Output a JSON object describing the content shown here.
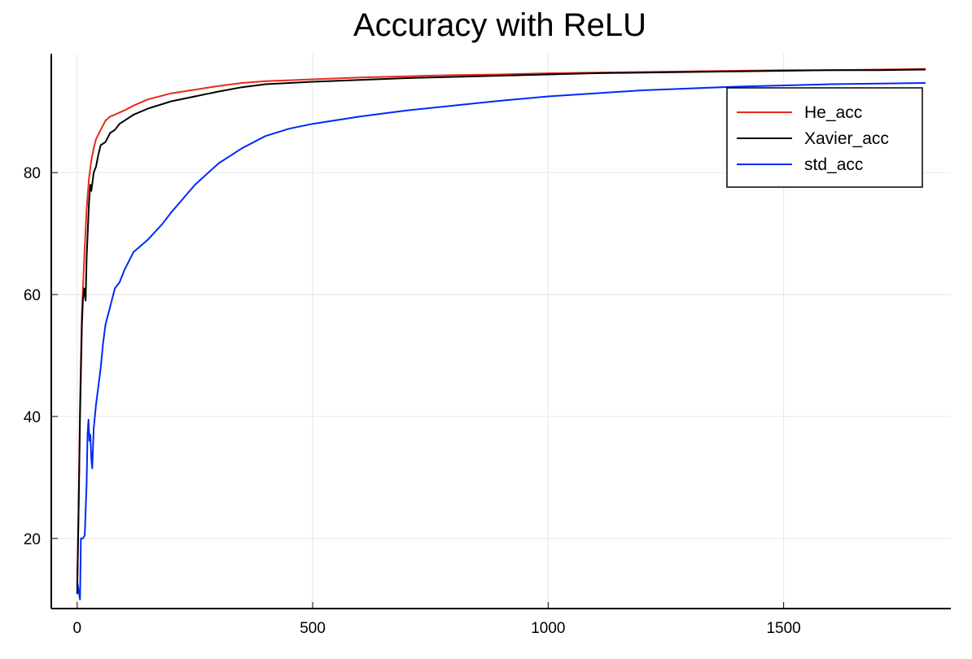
{
  "chart_data": {
    "type": "line",
    "title": "Accuracy with ReLU",
    "xlabel": "",
    "ylabel": "",
    "xlim": [
      -55,
      1855
    ],
    "ylim": [
      8.5,
      99.5
    ],
    "xticks": [
      0,
      500,
      1000,
      1500
    ],
    "yticks": [
      20,
      40,
      60,
      80
    ],
    "grid": true,
    "legend_position": "top-right",
    "series": [
      {
        "name": "He_acc",
        "color": "#e8291c",
        "points": [
          [
            0,
            12
          ],
          [
            3,
            25
          ],
          [
            6,
            42
          ],
          [
            10,
            57
          ],
          [
            15,
            66
          ],
          [
            20,
            74
          ],
          [
            25,
            79
          ],
          [
            30,
            82
          ],
          [
            35,
            84
          ],
          [
            40,
            85.5
          ],
          [
            50,
            87
          ],
          [
            60,
            88.5
          ],
          [
            70,
            89.2
          ],
          [
            80,
            89.5
          ],
          [
            100,
            90.2
          ],
          [
            120,
            91
          ],
          [
            150,
            92
          ],
          [
            200,
            93
          ],
          [
            250,
            93.6
          ],
          [
            300,
            94.2
          ],
          [
            350,
            94.7
          ],
          [
            400,
            95
          ],
          [
            500,
            95.3
          ],
          [
            600,
            95.6
          ],
          [
            700,
            95.8
          ],
          [
            800,
            96
          ],
          [
            900,
            96.1
          ],
          [
            1000,
            96.3
          ],
          [
            1100,
            96.4
          ],
          [
            1200,
            96.5
          ],
          [
            1300,
            96.6
          ],
          [
            1400,
            96.7
          ],
          [
            1500,
            96.8
          ],
          [
            1600,
            96.8
          ],
          [
            1700,
            96.9
          ],
          [
            1800,
            97
          ]
        ]
      },
      {
        "name": "Xavier_acc",
        "color": "#000000",
        "points": [
          [
            0,
            11
          ],
          [
            3,
            25
          ],
          [
            6,
            40
          ],
          [
            10,
            55
          ],
          [
            12,
            59
          ],
          [
            15,
            61
          ],
          [
            18,
            59
          ],
          [
            20,
            66
          ],
          [
            25,
            75
          ],
          [
            28,
            78
          ],
          [
            30,
            77
          ],
          [
            35,
            80
          ],
          [
            40,
            81
          ],
          [
            45,
            83
          ],
          [
            50,
            84.5
          ],
          [
            60,
            85
          ],
          [
            70,
            86.5
          ],
          [
            80,
            87
          ],
          [
            90,
            88
          ],
          [
            100,
            88.5
          ],
          [
            120,
            89.5
          ],
          [
            150,
            90.5
          ],
          [
            200,
            91.7
          ],
          [
            250,
            92.5
          ],
          [
            300,
            93.3
          ],
          [
            350,
            94
          ],
          [
            400,
            94.5
          ],
          [
            500,
            94.9
          ],
          [
            600,
            95.2
          ],
          [
            700,
            95.5
          ],
          [
            800,
            95.7
          ],
          [
            900,
            95.9
          ],
          [
            1000,
            96.1
          ],
          [
            1100,
            96.3
          ],
          [
            1200,
            96.4
          ],
          [
            1300,
            96.5
          ],
          [
            1400,
            96.6
          ],
          [
            1500,
            96.7
          ],
          [
            1600,
            96.8
          ],
          [
            1700,
            96.8
          ],
          [
            1800,
            96.9
          ]
        ]
      },
      {
        "name": "std_acc",
        "color": "#0029f5",
        "points": [
          [
            0,
            13
          ],
          [
            4,
            11
          ],
          [
            6,
            10
          ],
          [
            8,
            20
          ],
          [
            12,
            20
          ],
          [
            16,
            20.5
          ],
          [
            20,
            29
          ],
          [
            22,
            37
          ],
          [
            24,
            39.5
          ],
          [
            26,
            36
          ],
          [
            28,
            37
          ],
          [
            30,
            33
          ],
          [
            32,
            31.5
          ],
          [
            35,
            38
          ],
          [
            40,
            42
          ],
          [
            45,
            45
          ],
          [
            50,
            48
          ],
          [
            55,
            52
          ],
          [
            60,
            55
          ],
          [
            70,
            58
          ],
          [
            80,
            61
          ],
          [
            90,
            62
          ],
          [
            100,
            64
          ],
          [
            120,
            67
          ],
          [
            150,
            69
          ],
          [
            180,
            71.5
          ],
          [
            200,
            73.5
          ],
          [
            250,
            78
          ],
          [
            300,
            81.5
          ],
          [
            350,
            84
          ],
          [
            400,
            86
          ],
          [
            450,
            87.2
          ],
          [
            500,
            88
          ],
          [
            550,
            88.6
          ],
          [
            600,
            89.2
          ],
          [
            700,
            90.2
          ],
          [
            800,
            91
          ],
          [
            900,
            91.8
          ],
          [
            1000,
            92.5
          ],
          [
            1100,
            93
          ],
          [
            1200,
            93.5
          ],
          [
            1300,
            93.8
          ],
          [
            1400,
            94.1
          ],
          [
            1500,
            94.3
          ],
          [
            1600,
            94.5
          ],
          [
            1700,
            94.6
          ],
          [
            1800,
            94.7
          ]
        ]
      }
    ]
  }
}
